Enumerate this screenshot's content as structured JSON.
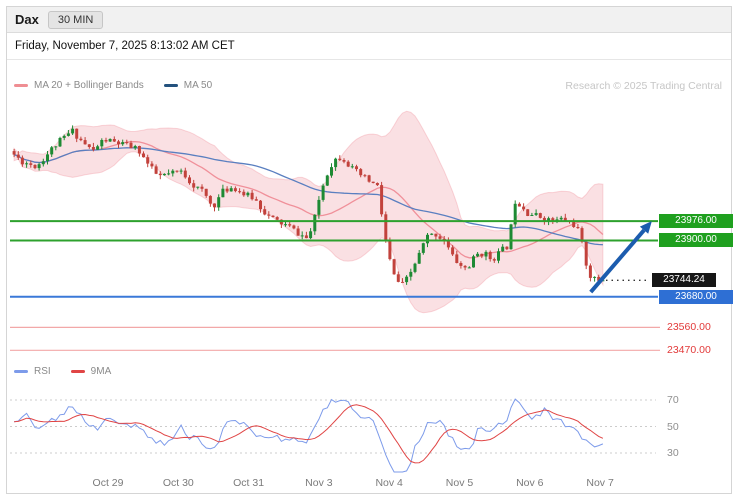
{
  "window": {
    "title": "Dax",
    "timeframe_badge": "30 MIN",
    "datetime": "Friday, November 7, 2025 8:13:02 AM CET",
    "attribution": "Research © 2025 Trading Central"
  },
  "legend_main": {
    "ma20": "MA 20 + Bollinger Bands",
    "ma50": "MA 50"
  },
  "legend_rsi": {
    "rsi": "RSI",
    "ma9": "9MA"
  },
  "price_labels": {
    "r2": "23976.00",
    "r1": "23900.00",
    "last": "23744.24",
    "s1": "23680.00",
    "s2": "23560.00",
    "s3": "23470.00"
  },
  "rsi_ticks": {
    "t70": "70",
    "t50": "50",
    "t30": "30"
  },
  "x_ticks": [
    "Oct 29",
    "Oct 30",
    "Oct 31",
    "Nov 3",
    "Nov 4",
    "Nov 5",
    "Nov 6",
    "Nov 7"
  ],
  "colors": {
    "up_candle": "#1e8a34",
    "down_candle": "#c2423c",
    "band_fill": "#f6c2c8",
    "ma20_line": "#f0909a",
    "ma20_legend": "#ef8e93",
    "ma50_line": "#5a7fc0",
    "ma50_legend": "#24527e",
    "level_green": "#1fa01f",
    "level_green_line": "#2da12d",
    "level_blue": "#2e6fd4",
    "level_blue_line": "#3a79d8",
    "level_black": "#161616",
    "level_red_line": "#f2a8a8",
    "level_red_text": "#e23a3a",
    "rsi_line": "#7d9bea",
    "rsi_ma_line": "#e04545",
    "grid_dotted": "#cccccc",
    "arrow": "#1c5cae"
  },
  "chart_data": {
    "type": "candlestick+rsi",
    "instrument": "Dax",
    "interval": "30 MIN",
    "as_of": "Friday, November 7, 2025 8:13:02 AM CET",
    "levels": {
      "resistance": [
        23976.0,
        23900.0
      ],
      "support": [
        23680.0,
        23560.0,
        23470.0
      ],
      "last_price": 23744.24
    },
    "y_range_main": [
      23440,
      24450
    ],
    "x_days": [
      "Oct 29",
      "Oct 30",
      "Oct 31",
      "Nov 3",
      "Nov 4",
      "Nov 5",
      "Nov 6",
      "Nov 7"
    ],
    "overlays": [
      "MA20",
      "Bollinger(20,2)",
      "MA50"
    ],
    "candles": {
      "count": 142,
      "price_path": [
        [
          0.0,
          24250
        ],
        [
          0.02,
          24210
        ],
        [
          0.045,
          24190
        ],
        [
          0.075,
          24270
        ],
        [
          0.105,
          24330
        ],
        [
          0.125,
          24280
        ],
        [
          0.14,
          24250
        ],
        [
          0.158,
          24295
        ],
        [
          0.175,
          24285
        ],
        [
          0.2,
          24270
        ],
        [
          0.217,
          24255
        ],
        [
          0.235,
          24190
        ],
        [
          0.25,
          24150
        ],
        [
          0.27,
          24160
        ],
        [
          0.29,
          24170
        ],
        [
          0.31,
          24115
        ],
        [
          0.326,
          24090
        ],
        [
          0.342,
          24030
        ],
        [
          0.36,
          24095
        ],
        [
          0.377,
          24110
        ],
        [
          0.395,
          24080
        ],
        [
          0.412,
          24065
        ],
        [
          0.428,
          24015
        ],
        [
          0.438,
          23990
        ],
        [
          0.455,
          23970
        ],
        [
          0.47,
          23955
        ],
        [
          0.488,
          23925
        ],
        [
          0.503,
          23905
        ],
        [
          0.515,
          23995
        ],
        [
          0.524,
          24090
        ],
        [
          0.536,
          24170
        ],
        [
          0.546,
          24215
        ],
        [
          0.56,
          24230
        ],
        [
          0.575,
          24185
        ],
        [
          0.588,
          24160
        ],
        [
          0.604,
          24135
        ],
        [
          0.62,
          24110
        ],
        [
          0.636,
          23860
        ],
        [
          0.65,
          23745
        ],
        [
          0.663,
          23725
        ],
        [
          0.676,
          23775
        ],
        [
          0.69,
          23845
        ],
        [
          0.703,
          23915
        ],
        [
          0.718,
          23925
        ],
        [
          0.733,
          23900
        ],
        [
          0.747,
          23835
        ],
        [
          0.76,
          23800
        ],
        [
          0.772,
          23790
        ],
        [
          0.786,
          23845
        ],
        [
          0.8,
          23850
        ],
        [
          0.813,
          23825
        ],
        [
          0.826,
          23855
        ],
        [
          0.84,
          23880
        ],
        [
          0.852,
          24055
        ],
        [
          0.863,
          24040
        ],
        [
          0.872,
          24010
        ],
        [
          0.884,
          24000
        ],
        [
          0.895,
          23992
        ],
        [
          0.906,
          23982
        ],
        [
          0.917,
          23974
        ],
        [
          0.929,
          23984
        ],
        [
          0.94,
          23978
        ],
        [
          0.951,
          23962
        ],
        [
          0.961,
          23930
        ],
        [
          0.969,
          23830
        ],
        [
          0.978,
          23765
        ],
        [
          0.987,
          23745
        ],
        [
          1.0,
          23744
        ]
      ]
    },
    "rsi": {
      "ma_period": 9,
      "ticks": [
        70,
        50,
        30
      ],
      "path": [
        [
          0.0,
          55
        ],
        [
          0.02,
          60
        ],
        [
          0.04,
          48
        ],
        [
          0.06,
          52
        ],
        [
          0.08,
          60
        ],
        [
          0.1,
          66
        ],
        [
          0.12,
          55
        ],
        [
          0.14,
          48
        ],
        [
          0.16,
          60
        ],
        [
          0.18,
          54
        ],
        [
          0.2,
          50
        ],
        [
          0.22,
          46
        ],
        [
          0.24,
          38
        ],
        [
          0.26,
          36
        ],
        [
          0.28,
          50
        ],
        [
          0.3,
          42
        ],
        [
          0.32,
          38
        ],
        [
          0.34,
          34
        ],
        [
          0.36,
          52
        ],
        [
          0.38,
          55
        ],
        [
          0.4,
          46
        ],
        [
          0.42,
          44
        ],
        [
          0.44,
          40
        ],
        [
          0.46,
          42
        ],
        [
          0.48,
          38
        ],
        [
          0.5,
          40
        ],
        [
          0.52,
          58
        ],
        [
          0.535,
          66
        ],
        [
          0.55,
          72
        ],
        [
          0.565,
          68
        ],
        [
          0.58,
          62
        ],
        [
          0.6,
          56
        ],
        [
          0.615,
          50
        ],
        [
          0.63,
          30
        ],
        [
          0.645,
          16
        ],
        [
          0.66,
          12
        ],
        [
          0.672,
          22
        ],
        [
          0.685,
          38
        ],
        [
          0.7,
          52
        ],
        [
          0.715,
          56
        ],
        [
          0.73,
          50
        ],
        [
          0.745,
          40
        ],
        [
          0.76,
          35
        ],
        [
          0.775,
          36
        ],
        [
          0.79,
          48
        ],
        [
          0.805,
          44
        ],
        [
          0.82,
          50
        ],
        [
          0.835,
          55
        ],
        [
          0.852,
          74
        ],
        [
          0.865,
          64
        ],
        [
          0.878,
          58
        ],
        [
          0.89,
          56
        ],
        [
          0.9,
          62
        ],
        [
          0.912,
          58
        ],
        [
          0.925,
          55
        ],
        [
          0.94,
          52
        ],
        [
          0.95,
          48
        ],
        [
          0.962,
          42
        ],
        [
          0.975,
          38
        ],
        [
          0.988,
          36
        ],
        [
          1.0,
          34
        ]
      ]
    },
    "annotation_arrow": {
      "from_t": 0.976,
      "from_price": 23698,
      "to_t": 1.079,
      "to_price": 23976,
      "direction": "up"
    }
  }
}
